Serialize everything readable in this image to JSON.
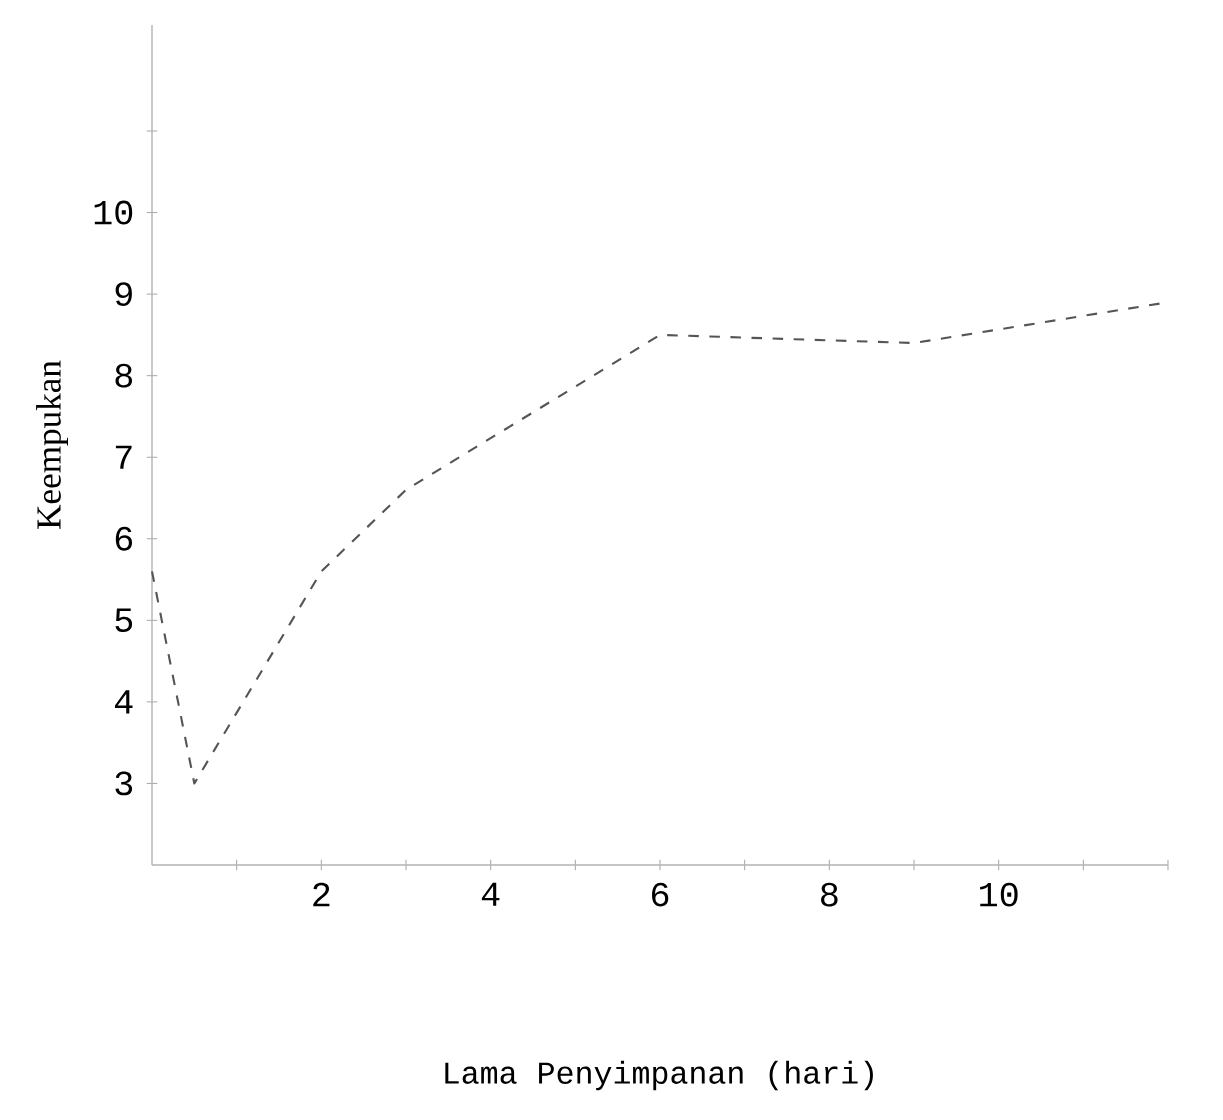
{
  "chart_data": {
    "type": "line",
    "xlabel": "Lama Penyimpanan (hari)",
    "ylabel": "Keempukan",
    "x": [
      0,
      0.5,
      2,
      3,
      6,
      9,
      12
    ],
    "values": [
      5.6,
      3.0,
      5.6,
      6.6,
      8.5,
      8.4,
      8.9
    ],
    "color": "#555555",
    "line_style": "dashed",
    "xlim": [
      0,
      12
    ],
    "xticks": [
      {
        "value": 1,
        "label": null
      },
      2,
      {
        "value": 3,
        "label": null
      },
      4,
      {
        "value": 5,
        "label": null
      },
      6,
      {
        "value": 7,
        "label": null
      },
      8,
      {
        "value": 9,
        "label": null
      },
      10,
      {
        "value": 11,
        "label": null
      },
      {
        "value": 12,
        "label": null
      }
    ],
    "ylim": [
      2,
      12.3
    ],
    "yticks": [
      3,
      4,
      5,
      6,
      7,
      8,
      9,
      10,
      {
        "value": 11,
        "label": null
      }
    ]
  }
}
